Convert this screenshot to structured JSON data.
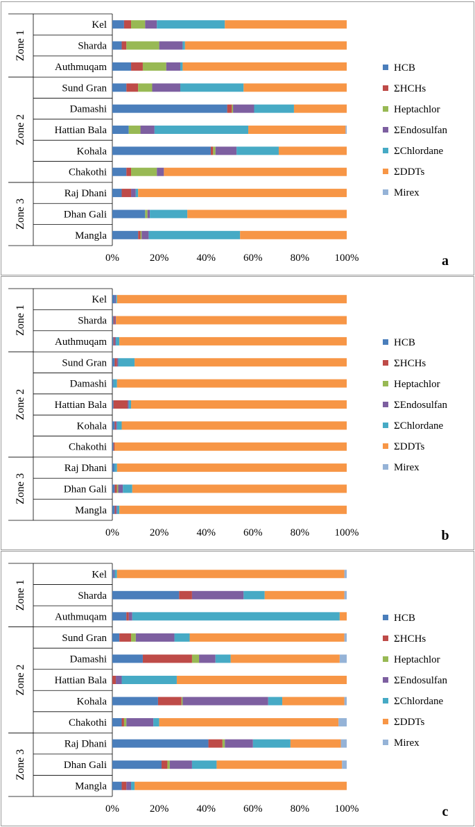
{
  "chart_data": [
    {
      "type": "bar",
      "orientation": "horizontal-stacked-100",
      "panel_label": "a",
      "categories": [
        "Kel",
        "Sharda",
        "Authmuqam",
        "Sund Gran",
        "Damashi",
        "Hattian Bala",
        "Kohala",
        "Chakothi",
        "Raj Dhani",
        "Dhan Gali",
        "Mangla"
      ],
      "zones": [
        {
          "label": "Zone 1",
          "start": 0,
          "end": 2
        },
        {
          "label": "Zone 2",
          "start": 3,
          "end": 7
        },
        {
          "label": "Zone 3",
          "start": 8,
          "end": 10
        }
      ],
      "series": [
        {
          "name": "HCB",
          "color": "#4a7ebb",
          "values": [
            5,
            4,
            8,
            6,
            49,
            7,
            42,
            6,
            4,
            14,
            11
          ]
        },
        {
          "name": "ΣHCHs",
          "color": "#be4b48",
          "values": [
            3,
            2,
            5,
            5,
            2,
            0,
            1,
            2,
            4,
            0,
            1
          ]
        },
        {
          "name": "Heptachlor",
          "color": "#98b954",
          "values": [
            6,
            14,
            10,
            6,
            0.5,
            5,
            1,
            11,
            0,
            1,
            0.5
          ]
        },
        {
          "name": "ΣEndosulfan",
          "color": "#7d5fa0",
          "values": [
            5,
            10,
            6,
            12,
            9,
            6,
            9,
            3,
            2,
            1,
            3
          ]
        },
        {
          "name": "ΣChlordane",
          "color": "#46aac5",
          "values": [
            29,
            1,
            1,
            27,
            17,
            40,
            18,
            0,
            1,
            16,
            39
          ]
        },
        {
          "name": "ΣDDTs",
          "color": "#f79646",
          "values": [
            52,
            69,
            70,
            44,
            22.5,
            41.5,
            29,
            78,
            89,
            68,
            45.5
          ]
        },
        {
          "name": "Mirex",
          "color": "#95b3d7",
          "values": [
            0,
            0,
            0,
            0,
            0,
            0.5,
            0,
            0,
            0,
            0,
            0
          ]
        }
      ],
      "xlim": [
        0,
        100
      ],
      "x_ticks": [
        "0%",
        "20%",
        "40%",
        "60%",
        "80%",
        "100%"
      ]
    },
    {
      "type": "bar",
      "orientation": "horizontal-stacked-100",
      "panel_label": "b",
      "categories": [
        "Kel",
        "Sharda",
        "Authmuqam",
        "Sund Gran",
        "Damashi",
        "Hattian Bala",
        "Kohala",
        "Chakothi",
        "Raj Dhani",
        "Dhan Gali",
        "Mangla"
      ],
      "zones": [
        {
          "label": "Zone 1",
          "start": 0,
          "end": 2
        },
        {
          "label": "Zone 2",
          "start": 3,
          "end": 7
        },
        {
          "label": "Zone 3",
          "start": 8,
          "end": 10
        }
      ],
      "series": [
        {
          "name": "HCB",
          "color": "#4a7ebb",
          "values": [
            1,
            0.5,
            0.5,
            1,
            0.5,
            0.5,
            1,
            0.5,
            1,
            1,
            1
          ]
        },
        {
          "name": "ΣHCHs",
          "color": "#be4b48",
          "values": [
            0,
            0.5,
            0.5,
            1,
            0,
            6,
            0.5,
            0.5,
            0,
            1,
            0.5
          ]
        },
        {
          "name": "Heptachlor",
          "color": "#98b954",
          "values": [
            0,
            0,
            0,
            0,
            0,
            0,
            0,
            0,
            0,
            0.5,
            0
          ]
        },
        {
          "name": "ΣEndosulfan",
          "color": "#7d5fa0",
          "values": [
            0.5,
            0.5,
            0.5,
            0.5,
            0,
            0.5,
            0.5,
            0,
            0,
            2,
            0.5
          ]
        },
        {
          "name": "ΣChlordane",
          "color": "#46aac5",
          "values": [
            0.5,
            0,
            1.5,
            7,
            1.5,
            1,
            2,
            0,
            1,
            4,
            1
          ]
        },
        {
          "name": "ΣDDTs",
          "color": "#f79646",
          "values": [
            98,
            98.5,
            97,
            90.5,
            98,
            92,
            96,
            99,
            98,
            91.5,
            97
          ]
        },
        {
          "name": "Mirex",
          "color": "#95b3d7",
          "values": [
            0,
            0,
            0,
            0,
            0,
            0,
            0,
            0,
            0,
            0,
            0
          ]
        }
      ],
      "xlim": [
        0,
        100
      ],
      "x_ticks": [
        "0%",
        "20%",
        "40%",
        "60%",
        "80%",
        "100%"
      ]
    },
    {
      "type": "bar",
      "orientation": "horizontal-stacked-100",
      "panel_label": "c",
      "categories": [
        "Kel",
        "Sharda",
        "Authmuqam",
        "Sund Gran",
        "Damashi",
        "Hattian Bala",
        "Kohala",
        "Chakothi",
        "Raj Dhani",
        "Dhan Gali",
        "Mangla"
      ],
      "zones": [
        {
          "label": "Zone 1",
          "start": 0,
          "end": 2
        },
        {
          "label": "Zone 2",
          "start": 3,
          "end": 7
        },
        {
          "label": "Zone 3",
          "start": 8,
          "end": 10
        }
      ],
      "series": [
        {
          "name": "HCB",
          "color": "#4a7ebb",
          "values": [
            0.5,
            28.5,
            6,
            3,
            13,
            0,
            19.5,
            4,
            41,
            21,
            4
          ]
        },
        {
          "name": "ΣHCHs",
          "color": "#be4b48",
          "values": [
            0,
            5.5,
            1,
            5,
            21,
            1.5,
            10,
            1,
            6,
            2.5,
            2
          ]
        },
        {
          "name": "Heptachlor",
          "color": "#98b954",
          "values": [
            0,
            0,
            0,
            2,
            3,
            0,
            0.5,
            1,
            1,
            1,
            0
          ]
        },
        {
          "name": "ΣEndosulfan",
          "color": "#7d5fa0",
          "values": [
            0.5,
            22,
            1.5,
            16.5,
            7,
            2.5,
            36.5,
            11.5,
            12,
            9.5,
            2
          ]
        },
        {
          "name": "ΣChlordane",
          "color": "#46aac5",
          "values": [
            1,
            9,
            88.5,
            6.5,
            6.5,
            23.5,
            6,
            2.5,
            16,
            10.5,
            1.5
          ]
        },
        {
          "name": "ΣDDTs",
          "color": "#f79646",
          "values": [
            97,
            34,
            3,
            66,
            46.5,
            72.5,
            26.5,
            76.5,
            21.5,
            53.5,
            90.5
          ]
        },
        {
          "name": "Mirex",
          "color": "#95b3d7",
          "values": [
            1,
            1,
            0,
            1,
            3,
            0,
            1,
            3.5,
            2.5,
            2,
            0
          ]
        }
      ],
      "xlim": [
        0,
        100
      ],
      "x_ticks": [
        "0%",
        "20%",
        "40%",
        "60%",
        "80%",
        "100%"
      ]
    }
  ]
}
